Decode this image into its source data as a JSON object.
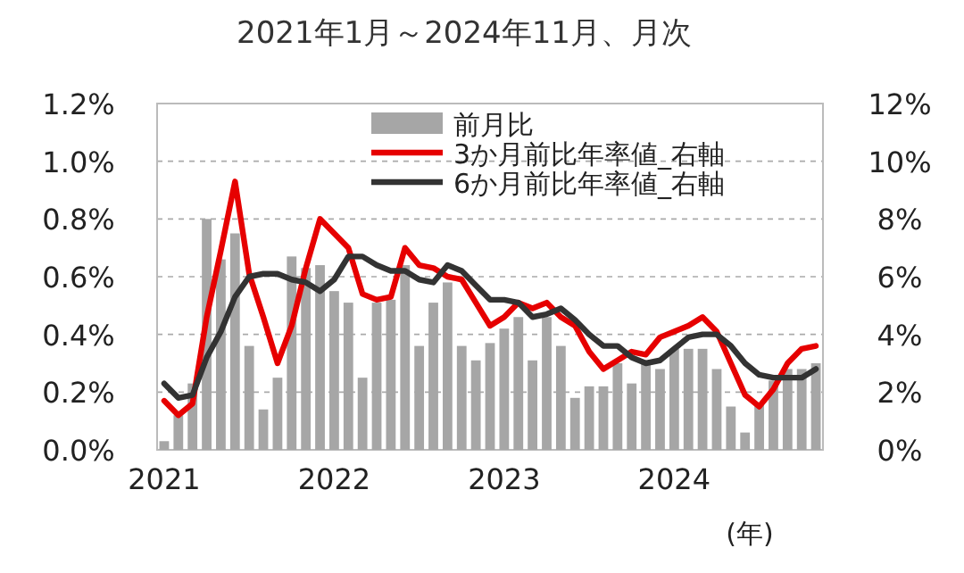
{
  "chart_data": {
    "type": "bar",
    "title": "2021年1月～2024年11月、月次",
    "categories": [
      "2021",
      null,
      null,
      null,
      null,
      null,
      null,
      null,
      null,
      null,
      null,
      null,
      "2022",
      null,
      null,
      null,
      null,
      null,
      null,
      null,
      null,
      null,
      null,
      null,
      "2023",
      null,
      null,
      null,
      null,
      null,
      null,
      null,
      null,
      null,
      null,
      null,
      "2024",
      null,
      null,
      null,
      null,
      null,
      null,
      null,
      null,
      null,
      null
    ],
    "series": [
      {
        "name": "前月比",
        "color": "#a6a6a6",
        "values": [
          0.03,
          0.12,
          0.23,
          0.8,
          0.66,
          0.75,
          0.36,
          0.14,
          0.25,
          0.67,
          0.63,
          0.64,
          0.55,
          0.51,
          0.25,
          0.51,
          0.52,
          0.64,
          0.36,
          0.51,
          0.58,
          0.36,
          0.31,
          0.37,
          0.42,
          0.46,
          0.31,
          0.46,
          0.36,
          0.18,
          0.22,
          0.22,
          0.3,
          0.23,
          0.31,
          0.28,
          0.35,
          0.35,
          0.35,
          0.28,
          0.15,
          0.06,
          0.16,
          0.24,
          0.28,
          0.28,
          0.3
        ]
      },
      {
        "name": "3か月前比年率値_右軸",
        "type": "line",
        "axis": "y2",
        "color": "#e60000",
        "values": [
          1.7,
          1.2,
          1.6,
          4.6,
          6.9,
          9.3,
          6.1,
          4.6,
          3.0,
          4.3,
          6.3,
          8.0,
          7.5,
          7.0,
          5.4,
          5.2,
          5.3,
          7.0,
          6.4,
          6.3,
          6.0,
          5.9,
          5.1,
          4.3,
          4.6,
          5.1,
          4.9,
          5.1,
          4.6,
          4.3,
          3.4,
          2.8,
          3.1,
          3.4,
          3.3,
          3.9,
          4.1,
          4.3,
          4.6,
          4.1,
          3.0,
          1.9,
          1.5,
          2.1,
          3.0,
          3.5,
          3.6
        ]
      },
      {
        "name": "6か月前比年率値_右軸",
        "type": "line",
        "axis": "y2",
        "color": "#333333",
        "values": [
          2.3,
          1.8,
          1.9,
          3.2,
          4.1,
          5.3,
          6.0,
          6.1,
          6.1,
          5.9,
          5.8,
          5.5,
          5.9,
          6.7,
          6.7,
          6.4,
          6.2,
          6.2,
          5.9,
          5.8,
          6.4,
          6.2,
          5.7,
          5.2,
          5.2,
          5.1,
          4.6,
          4.7,
          4.9,
          4.5,
          4.0,
          3.6,
          3.6,
          3.2,
          3.0,
          3.1,
          3.5,
          3.9,
          4.0,
          4.0,
          3.6,
          3.0,
          2.6,
          2.5,
          2.5,
          2.5,
          2.8
        ]
      }
    ],
    "ylim": [
      0,
      1.2
    ],
    "yticks": [
      {
        "value": 0,
        "label": "0.0%"
      },
      {
        "value": 0.2,
        "label": "0.2%"
      },
      {
        "value": 0.4,
        "label": "0.4%"
      },
      {
        "value": 0.6,
        "label": "0.6%"
      },
      {
        "value": 0.8,
        "label": "0.8%"
      },
      {
        "value": 1.0,
        "label": "1.0%"
      },
      {
        "value": 1.2,
        "label": "1.2%"
      }
    ],
    "y2lim": [
      0,
      12
    ],
    "y2ticks": [
      {
        "value": 0,
        "label": "0%"
      },
      {
        "value": 2,
        "label": "2%"
      },
      {
        "value": 4,
        "label": "4%"
      },
      {
        "value": 6,
        "label": "6%"
      },
      {
        "value": 8,
        "label": "8%"
      },
      {
        "value": 10,
        "label": "10%"
      },
      {
        "value": 12,
        "label": "12%"
      }
    ],
    "grid": "y",
    "legend": "top right",
    "annotations": [
      "(年)"
    ]
  }
}
